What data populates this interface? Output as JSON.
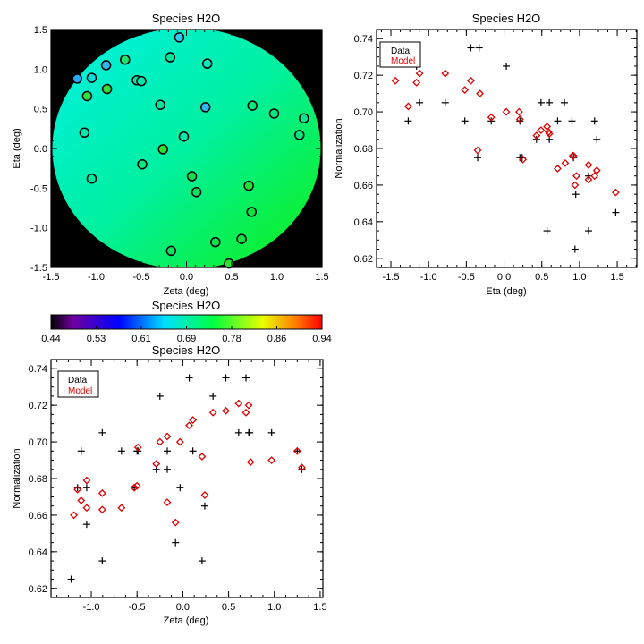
{
  "chart_data": [
    {
      "type": "heatmap",
      "title": "Species H2O",
      "xlabel": "Zeta (deg)",
      "ylabel": "Eta (deg)",
      "xlim": [
        -1.5,
        1.5
      ],
      "ylim": [
        -1.5,
        1.5
      ],
      "xticks": [
        "-1.5",
        "-1.0",
        "-0.5",
        "0.0",
        "0.5",
        "1.0",
        "1.5"
      ],
      "yticks": [
        "-1.5",
        "-1.0",
        "-0.5",
        "0.0",
        "0.5",
        "1.0",
        "1.5"
      ],
      "points": [
        {
          "zeta": -0.08,
          "eta": 1.4,
          "color": "#30c8f0"
        },
        {
          "zeta": -0.18,
          "eta": 1.15,
          "color": "#00e8a0"
        },
        {
          "zeta": -0.68,
          "eta": 1.12,
          "color": "#20e070"
        },
        {
          "zeta": -0.89,
          "eta": 1.05,
          "color": "#30b8f0"
        },
        {
          "zeta": 0.23,
          "eta": 1.07,
          "color": "#00e8c0"
        },
        {
          "zeta": -1.21,
          "eta": 0.88,
          "color": "#2aa8f0"
        },
        {
          "zeta": -1.05,
          "eta": 0.89,
          "color": "#00e0e0"
        },
        {
          "zeta": -0.55,
          "eta": 0.86,
          "color": "#00e8b0"
        },
        {
          "zeta": -0.5,
          "eta": 0.85,
          "color": "#00e8b0"
        },
        {
          "zeta": -0.88,
          "eta": 0.75,
          "color": "#30e040"
        },
        {
          "zeta": -1.1,
          "eta": 0.66,
          "color": "#30e040"
        },
        {
          "zeta": -0.29,
          "eta": 0.55,
          "color": "#00e8a0"
        },
        {
          "zeta": 0.21,
          "eta": 0.52,
          "color": "#30b8f0"
        },
        {
          "zeta": 0.73,
          "eta": 0.54,
          "color": "#00e880"
        },
        {
          "zeta": 0.97,
          "eta": 0.44,
          "color": "#00e880"
        },
        {
          "zeta": 1.3,
          "eta": 0.38,
          "color": "#00e890"
        },
        {
          "zeta": -1.13,
          "eta": 0.2,
          "color": "#00e8b0"
        },
        {
          "zeta": -0.03,
          "eta": 0.15,
          "color": "#00e8b0"
        },
        {
          "zeta": 1.25,
          "eta": 0.17,
          "color": "#00e880"
        },
        {
          "zeta": -0.26,
          "eta": -0.01,
          "color": "#30e030"
        },
        {
          "zeta": -0.49,
          "eta": -0.2,
          "color": "#00e880"
        },
        {
          "zeta": -1.05,
          "eta": -0.38,
          "color": "#00e8a0"
        },
        {
          "zeta": 0.06,
          "eta": -0.35,
          "color": "#10e050"
        },
        {
          "zeta": 0.11,
          "eta": -0.55,
          "color": "#10e060"
        },
        {
          "zeta": 0.69,
          "eta": -0.47,
          "color": "#20e030"
        },
        {
          "zeta": 0.72,
          "eta": -0.8,
          "color": "#10e040"
        },
        {
          "zeta": -0.17,
          "eta": -1.29,
          "color": "#10e060"
        },
        {
          "zeta": 0.32,
          "eta": -1.18,
          "color": "#10e050"
        },
        {
          "zeta": 0.61,
          "eta": -1.14,
          "color": "#10e040"
        },
        {
          "zeta": 0.47,
          "eta": -1.45,
          "color": "#30e030"
        }
      ],
      "colorbar": {
        "title": "Species H2O",
        "range": [
          0.44,
          0.94
        ],
        "ticks": [
          "0.44",
          "0.53",
          "0.61",
          "0.69",
          "0.78",
          "0.86",
          "0.94"
        ]
      }
    },
    {
      "type": "scatter",
      "title": "Species H2O",
      "xlabel": "Eta (deg)",
      "ylabel": "Normalization",
      "xlim": [
        -1.69,
        1.76
      ],
      "ylim": [
        0.615,
        0.745
      ],
      "xticks": [
        "-1.5",
        "-1.0",
        "-0.5",
        "0.0",
        "0.5",
        "1.0",
        "1.5"
      ],
      "yticks": [
        "0.62",
        "0.64",
        "0.66",
        "0.68",
        "0.70",
        "0.72",
        "0.74"
      ],
      "legend": {
        "position": "top-left",
        "entries": [
          "Data",
          "Model"
        ]
      },
      "series": [
        {
          "name": "Data",
          "marker": "plus",
          "color": "#000000",
          "points": [
            [
              -1.44,
              0.734
            ],
            [
              -1.27,
              0.695
            ],
            [
              -1.16,
              0.725
            ],
            [
              -1.12,
              0.705
            ],
            [
              -0.78,
              0.705
            ],
            [
              -0.52,
              0.695
            ],
            [
              -0.44,
              0.735
            ],
            [
              -0.33,
              0.735
            ],
            [
              -0.35,
              0.675
            ],
            [
              -0.17,
              0.695
            ],
            [
              0.03,
              0.725
            ],
            [
              0.21,
              0.695
            ],
            [
              0.21,
              0.675
            ],
            [
              0.24,
              0.675
            ],
            [
              0.43,
              0.685
            ],
            [
              0.49,
              0.705
            ],
            [
              0.6,
              0.705
            ],
            [
              0.6,
              0.685
            ],
            [
              0.57,
              0.635
            ],
            [
              0.71,
              0.695
            ],
            [
              0.8,
              0.705
            ],
            [
              0.9,
              0.695
            ],
            [
              0.92,
              0.675
            ],
            [
              0.95,
              0.655
            ],
            [
              0.94,
              0.625
            ],
            [
              1.12,
              0.635
            ],
            [
              1.12,
              0.665
            ],
            [
              1.2,
              0.695
            ],
            [
              1.23,
              0.685
            ],
            [
              1.48,
              0.645
            ]
          ]
        },
        {
          "name": "Model",
          "marker": "diamond",
          "color": "#e00000",
          "points": [
            [
              -1.44,
              0.717
            ],
            [
              -1.27,
              0.703
            ],
            [
              -1.16,
              0.716
            ],
            [
              -1.12,
              0.721
            ],
            [
              -0.78,
              0.721
            ],
            [
              -0.52,
              0.712
            ],
            [
              -0.44,
              0.717
            ],
            [
              -0.32,
              0.71
            ],
            [
              -0.35,
              0.679
            ],
            [
              -0.17,
              0.697
            ],
            [
              0.03,
              0.7
            ],
            [
              0.2,
              0.7
            ],
            [
              0.21,
              0.696
            ],
            [
              0.25,
              0.674
            ],
            [
              0.43,
              0.687
            ],
            [
              0.49,
              0.69
            ],
            [
              0.57,
              0.692
            ],
            [
              0.59,
              0.689
            ],
            [
              0.6,
              0.688
            ],
            [
              0.71,
              0.669
            ],
            [
              0.81,
              0.672
            ],
            [
              0.91,
              0.676
            ],
            [
              0.92,
              0.676
            ],
            [
              0.96,
              0.665
            ],
            [
              0.94,
              0.66
            ],
            [
              1.12,
              0.671
            ],
            [
              1.12,
              0.663
            ],
            [
              1.2,
              0.665
            ],
            [
              1.23,
              0.668
            ],
            [
              1.48,
              0.656
            ]
          ]
        }
      ]
    },
    {
      "type": "scatter",
      "title": "Species H2O",
      "xlabel": "Zeta (deg)",
      "ylabel": "Normalization",
      "xlim": [
        -1.44,
        1.53
      ],
      "ylim": [
        0.615,
        0.745
      ],
      "xticks": [
        "-1.0",
        "-0.5",
        "0.0",
        "0.5",
        "1.0",
        "1.5"
      ],
      "yticks": [
        "0.62",
        "0.64",
        "0.66",
        "0.68",
        "0.70",
        "0.72",
        "0.74"
      ],
      "legend": {
        "position": "top-left",
        "entries": [
          "Data",
          "Model"
        ]
      },
      "series": [
        {
          "name": "Data",
          "marker": "plus",
          "color": "#000000",
          "points": [
            [
              -1.22,
              0.625
            ],
            [
              -1.15,
              0.675
            ],
            [
              -1.11,
              0.695
            ],
            [
              -1.05,
              0.675
            ],
            [
              -1.05,
              0.655
            ],
            [
              -0.88,
              0.705
            ],
            [
              -0.88,
              0.635
            ],
            [
              -0.67,
              0.695
            ],
            [
              -0.53,
              0.675
            ],
            [
              -0.5,
              0.695
            ],
            [
              -0.49,
              0.695
            ],
            [
              -0.29,
              0.685
            ],
            [
              -0.25,
              0.725
            ],
            [
              -0.17,
              0.695
            ],
            [
              -0.17,
              0.685
            ],
            [
              -0.08,
              0.645
            ],
            [
              -0.03,
              0.675
            ],
            [
              0.07,
              0.735
            ],
            [
              0.11,
              0.695
            ],
            [
              0.21,
              0.635
            ],
            [
              0.24,
              0.665
            ],
            [
              0.33,
              0.725
            ],
            [
              0.47,
              0.735
            ],
            [
              0.61,
              0.705
            ],
            [
              0.69,
              0.735
            ],
            [
              0.72,
              0.705
            ],
            [
              0.73,
              0.705
            ],
            [
              0.97,
              0.705
            ],
            [
              1.25,
              0.695
            ],
            [
              1.3,
              0.685
            ]
          ]
        },
        {
          "name": "Model",
          "marker": "diamond",
          "color": "#e00000",
          "points": [
            [
              -1.19,
              0.66
            ],
            [
              -1.15,
              0.674
            ],
            [
              -1.11,
              0.668
            ],
            [
              -1.05,
              0.679
            ],
            [
              -1.05,
              0.664
            ],
            [
              -0.88,
              0.672
            ],
            [
              -0.88,
              0.663
            ],
            [
              -0.67,
              0.664
            ],
            [
              -0.53,
              0.675
            ],
            [
              -0.5,
              0.676
            ],
            [
              -0.49,
              0.697
            ],
            [
              -0.29,
              0.688
            ],
            [
              -0.25,
              0.7
            ],
            [
              -0.17,
              0.703
            ],
            [
              -0.17,
              0.667
            ],
            [
              -0.08,
              0.656
            ],
            [
              -0.03,
              0.7
            ],
            [
              0.07,
              0.709
            ],
            [
              0.11,
              0.712
            ],
            [
              0.21,
              0.692
            ],
            [
              0.24,
              0.671
            ],
            [
              0.33,
              0.716
            ],
            [
              0.47,
              0.717
            ],
            [
              0.61,
              0.721
            ],
            [
              0.69,
              0.716
            ],
            [
              0.72,
              0.72
            ],
            [
              0.74,
              0.689
            ],
            [
              0.97,
              0.69
            ],
            [
              1.25,
              0.695
            ],
            [
              1.3,
              0.686
            ]
          ]
        }
      ]
    }
  ]
}
